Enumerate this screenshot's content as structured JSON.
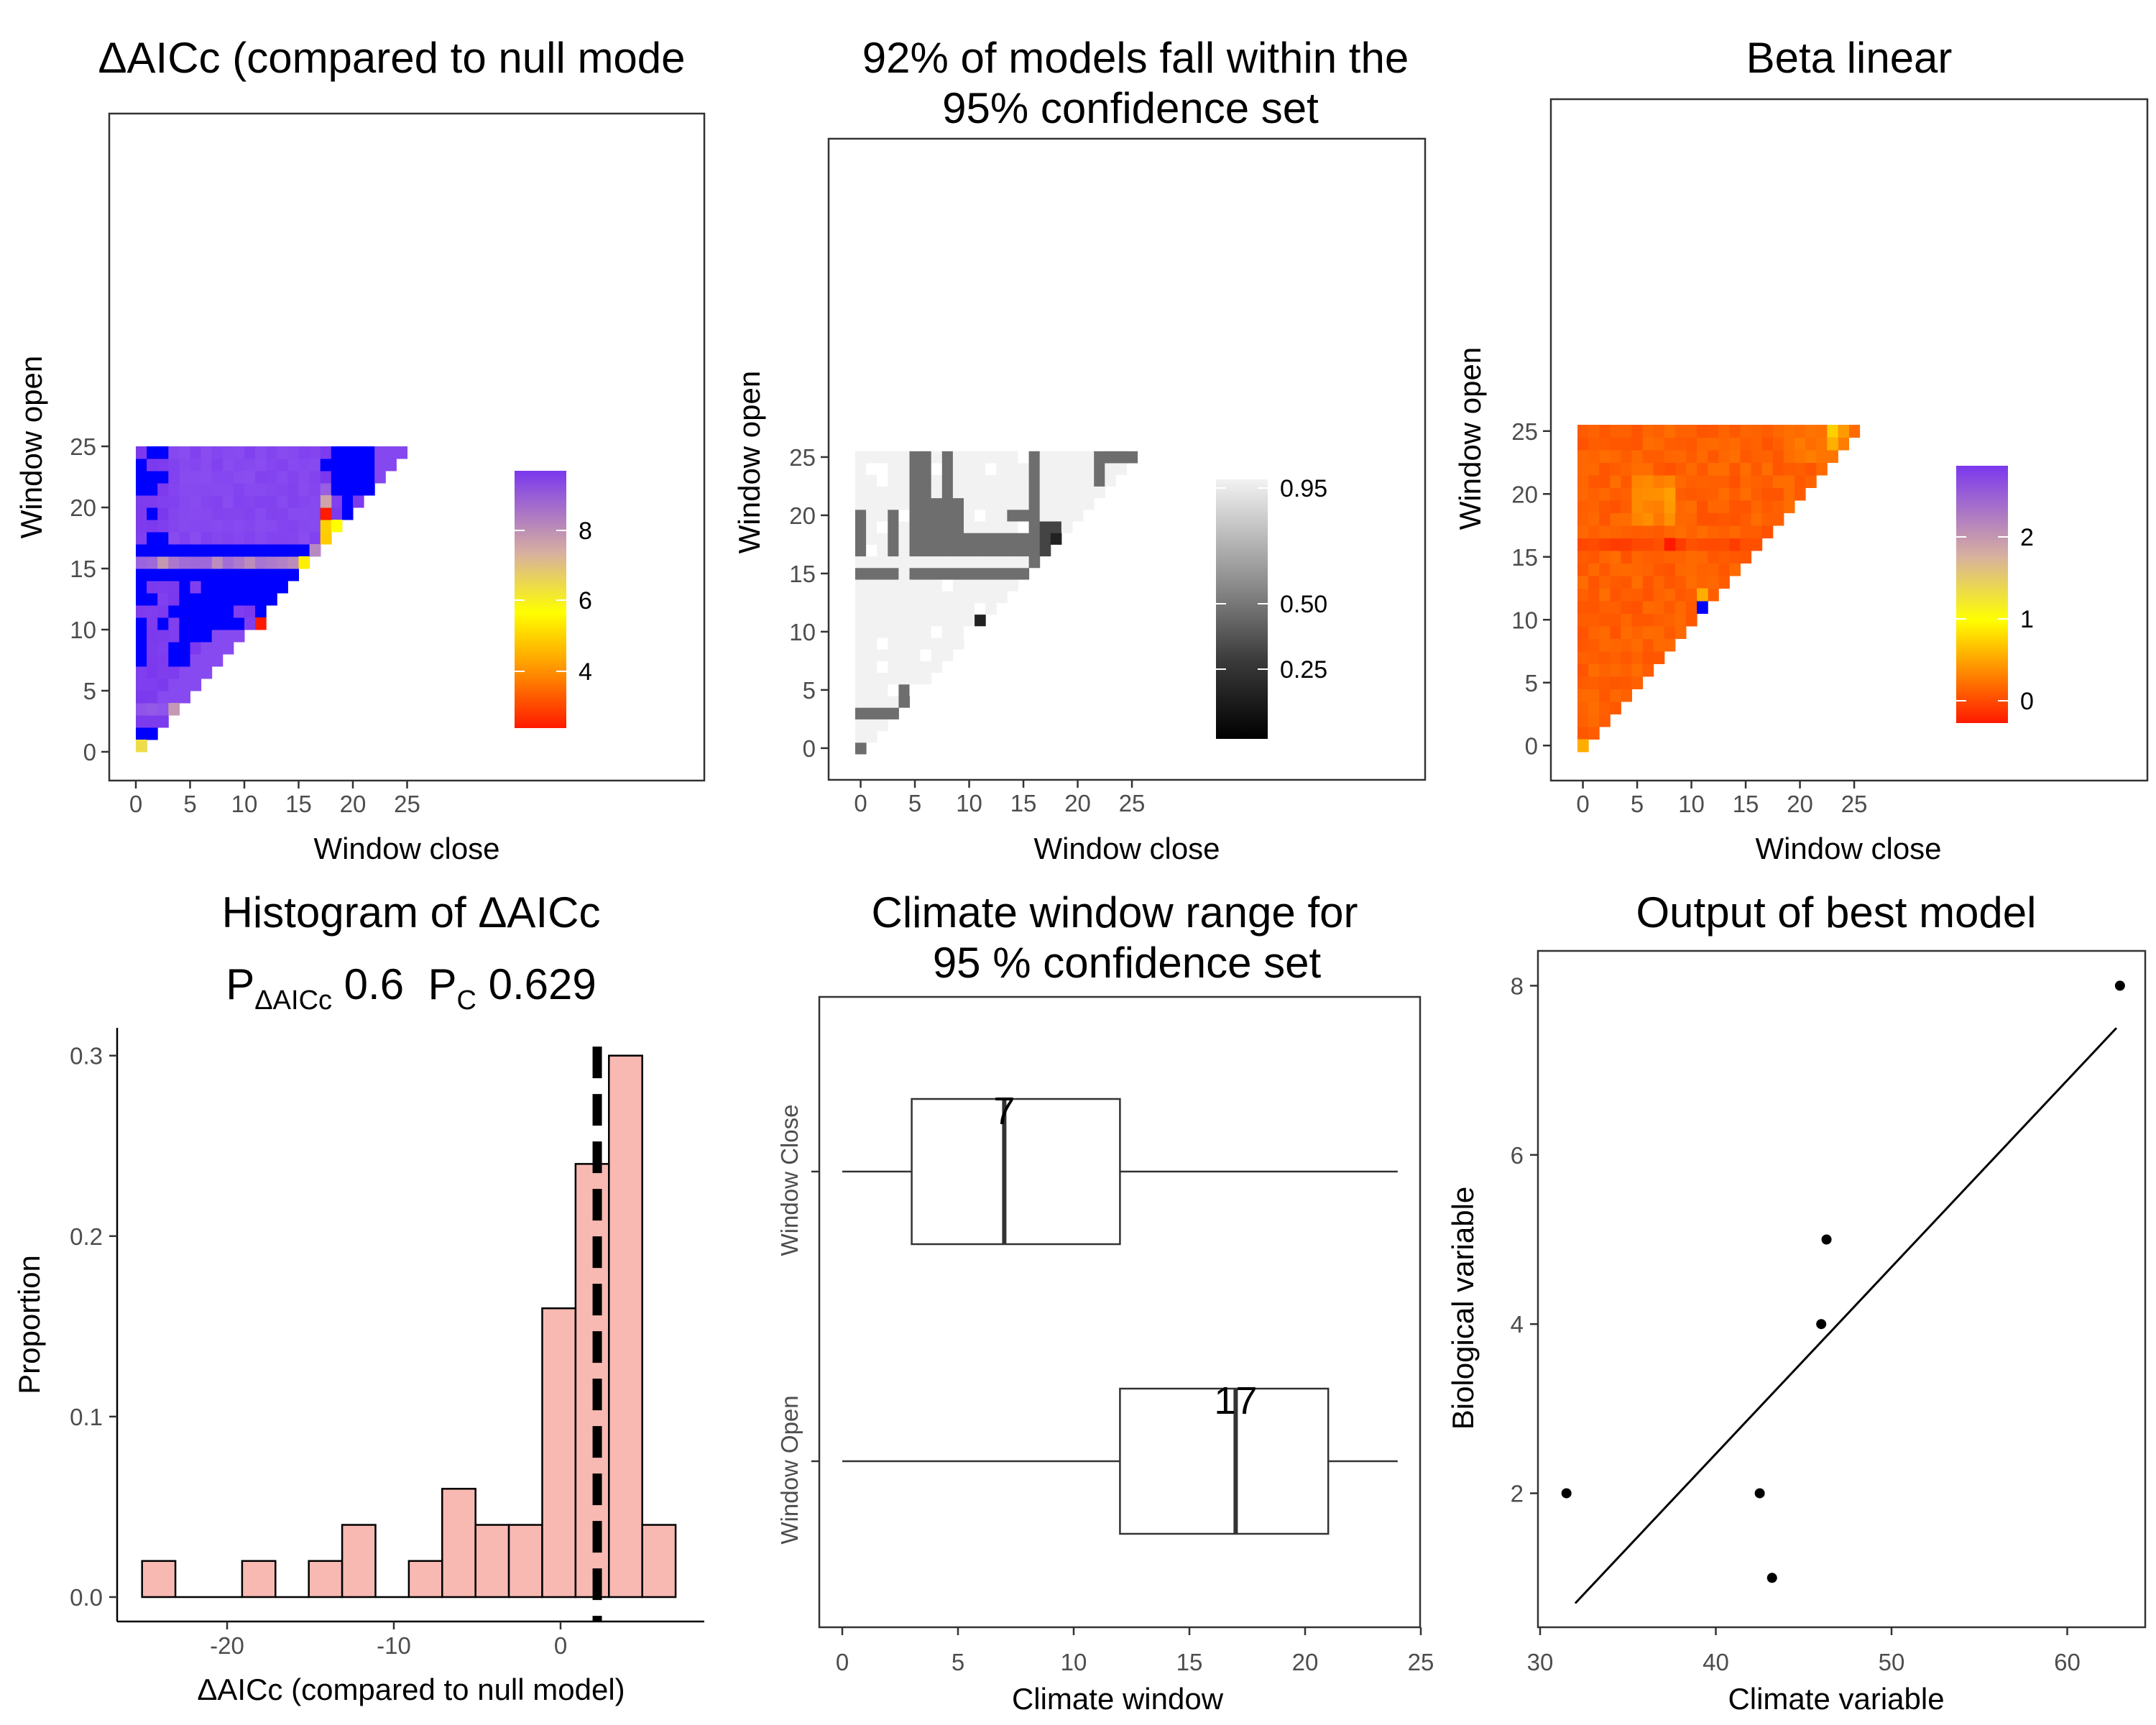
{
  "panels": {
    "p1": {
      "title": "ΔAICc (compared to null mode",
      "xlabel": "Window close",
      "ylabel": "Window open",
      "ticks": [
        "0",
        "5",
        "10",
        "15",
        "20",
        "25"
      ],
      "legend_ticks": [
        "8",
        "6",
        "4"
      ]
    },
    "p2": {
      "title_line1": "92% of models fall within the",
      "title_line2": "95% confidence set",
      "xlabel": "Window close",
      "ylabel": "Window open",
      "ticks": [
        "0",
        "5",
        "10",
        "15",
        "20",
        "25"
      ],
      "legend_ticks": [
        "0.95",
        "0.50",
        "0.25"
      ]
    },
    "p3": {
      "title": "Beta linear",
      "xlabel": "Window close",
      "ylabel": "Window open",
      "ticks": [
        "0",
        "5",
        "10",
        "15",
        "20",
        "25"
      ],
      "legend_ticks": [
        "2",
        "1",
        "0"
      ]
    },
    "p4": {
      "title_line1": "Histogram of ΔAICc",
      "title_line2": {
        "p": "P",
        "p_sub": "ΔAICc",
        "p_val": " 0.6  ",
        "c": "P",
        "c_sub": "C",
        "c_val": " 0.629"
      },
      "xlabel": "ΔAICc (compared to null model)",
      "ylabel": "Proportion",
      "xticks": [
        "-20",
        "-10",
        "0"
      ],
      "yticks": [
        "0.0",
        "0.1",
        "0.2",
        "0.3"
      ]
    },
    "p5": {
      "title_line1": "Climate window range for",
      "title_line2": "95 % confidence set",
      "xlabel": "Climate window",
      "xticks": [
        "0",
        "5",
        "10",
        "15",
        "20",
        "25"
      ],
      "categories": [
        "Window Close",
        "Window Open"
      ],
      "median_labels": [
        "7",
        "17"
      ]
    },
    "p6": {
      "title": "Output of best model",
      "xlabel": "Climate variable",
      "ylabel": "Biological variable",
      "xticks": [
        "30",
        "40",
        "50",
        "60"
      ],
      "yticks": [
        "2",
        "4",
        "6",
        "8"
      ]
    }
  },
  "chart_data": [
    {
      "type": "heatmap",
      "title": "ΔAICc (compared to null mode",
      "xlabel": "Window close",
      "ylabel": "Window open",
      "xlim": [
        0,
        25
      ],
      "ylim": [
        0,
        25
      ],
      "legend": "bottom-right",
      "palette": [
        "#ff1a00",
        "#ffff00",
        "#d7b0a0",
        "#7b38ee",
        "#0000ff"
      ],
      "value_range": [
        2.9,
        9.3
      ],
      "note_values": {
        "diagonal_near_0": 5.2,
        "open15": 7.5,
        "open20_close17": 3.0,
        "open10_close11": 3.3,
        "open3_close3": 7.0
      }
    },
    {
      "type": "heatmap",
      "title": "92% of models fall within the 95% confidence set",
      "xlabel": "Window close",
      "ylabel": "Window open",
      "xlim": [
        0,
        25
      ],
      "ylim": [
        0,
        25
      ],
      "legend": "bottom-right",
      "value_range": [
        0,
        1
      ],
      "legend_ticks": [
        0.95,
        0.5,
        0.25
      ]
    },
    {
      "type": "heatmap",
      "title": "Beta linear",
      "xlabel": "Window close",
      "ylabel": "Window open",
      "xlim": [
        0,
        25
      ],
      "ylim": [
        0,
        25
      ],
      "legend": "bottom-right",
      "value_range": [
        -0.3,
        2.9
      ],
      "legend_ticks": [
        2,
        1,
        0
      ]
    },
    {
      "type": "bar",
      "title": "Histogram of ΔAICc",
      "subtitle": "PΔAICc 0.6  PC 0.629",
      "xlabel": "ΔAICc (compared to null model)",
      "ylabel": "Proportion",
      "bin_width": 2.0,
      "bin_starts": [
        -25.1,
        -23.1,
        -21.1,
        -19.1,
        -17.1,
        -15.1,
        -13.1,
        -11.1,
        -9.1,
        -7.1,
        -5.1,
        -3.1,
        -1.1,
        0.9,
        2.9,
        4.9
      ],
      "values": [
        0.02,
        0,
        0,
        0.02,
        0,
        0.02,
        0.04,
        0,
        0.02,
        0.06,
        0.04,
        0.04,
        0.16,
        0.24,
        0.3,
        0.04
      ],
      "vline": 2.2,
      "xlim": [
        -25.5,
        7.5
      ],
      "ylim": [
        0,
        0.32
      ]
    },
    {
      "type": "box",
      "title": "Climate window range for 95 % confidence set",
      "xlabel": "Climate window",
      "categories": [
        "Window Close",
        "Window Open"
      ],
      "boxes": [
        {
          "name": "Window Close",
          "min": 0,
          "q1": 3,
          "median": 7,
          "q3": 12,
          "max": 24
        },
        {
          "name": "Window Open",
          "min": 0,
          "q1": 12,
          "median": 17,
          "q3": 21,
          "max": 24
        }
      ],
      "xlim": [
        0,
        25
      ]
    },
    {
      "type": "scatter",
      "title": "Output of best model",
      "xlabel": "Climate variable",
      "ylabel": "Biological variable",
      "points": [
        [
          31.5,
          2
        ],
        [
          42.5,
          2
        ],
        [
          43.2,
          1
        ],
        [
          46.0,
          4
        ],
        [
          46.3,
          5
        ],
        [
          63.0,
          8
        ]
      ],
      "fit_line": {
        "x": [
          32.0,
          62.8
        ],
        "y": [
          0.7,
          7.5
        ]
      },
      "xlim": [
        30,
        64
      ],
      "ylim": [
        0.5,
        8.5
      ]
    }
  ]
}
